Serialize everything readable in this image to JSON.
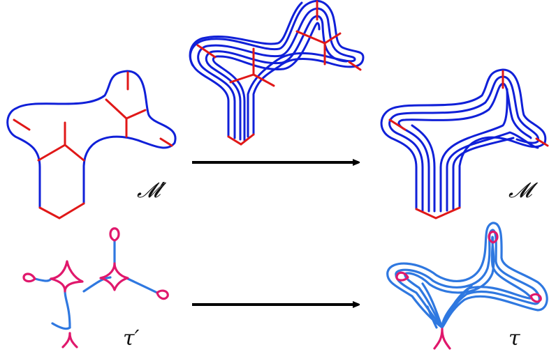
{
  "labels": {
    "m_prime": "𝓜′",
    "m": "𝓜",
    "tau_prime": "τ′",
    "tau": "τ"
  },
  "colors": {
    "surface_boundary": "#1020d8",
    "cut_arcs": "#e01818",
    "track_edges": "#2f78e0",
    "track_switches": "#e0186c",
    "arrow": "#000000"
  }
}
